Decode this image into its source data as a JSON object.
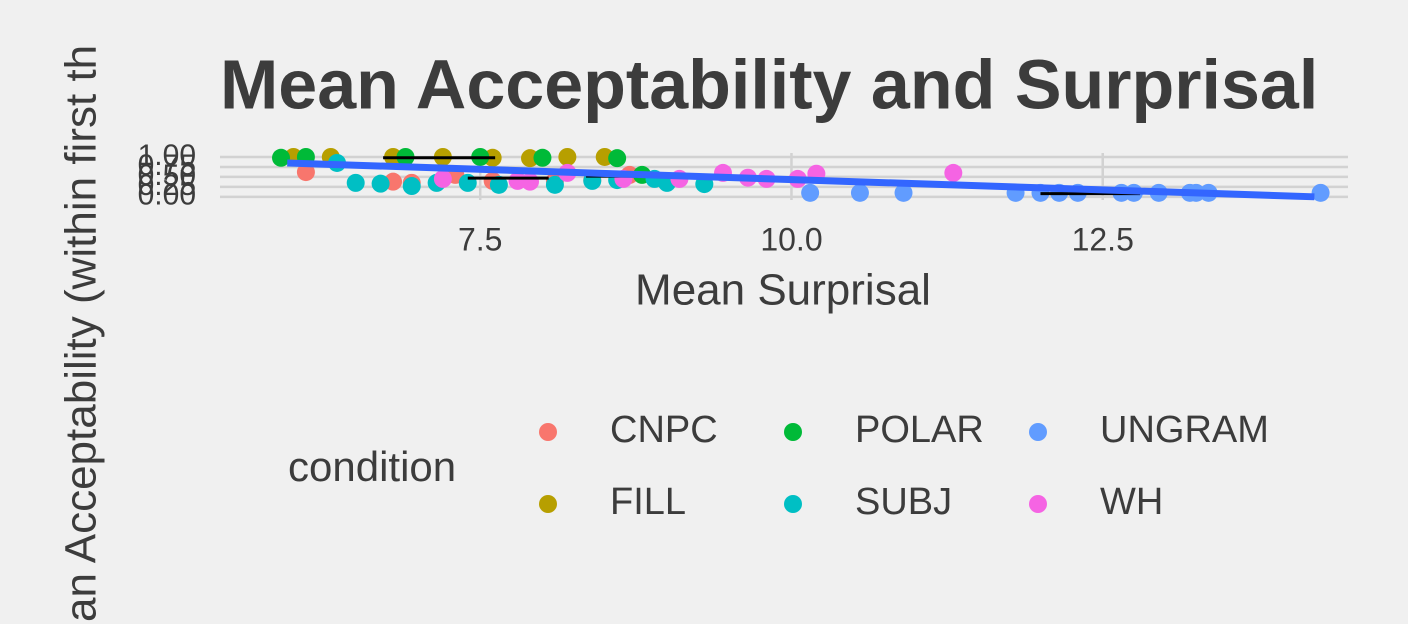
{
  "chart_data": {
    "type": "scatter",
    "title": "Mean Acceptability and Surprisal",
    "x_label": "Mean Surprisal",
    "y_label": "an Acceptability (within first th",
    "legend_title": "condition",
    "xlim": [
      5.41,
      14.47
    ],
    "ylim": [
      -0.08,
      1.1
    ],
    "xticks": [
      7.5,
      {
        "value": 10,
        "label": "10.0"
      },
      12.5
    ],
    "yticks": [
      {
        "value": 0,
        "label": "0.00"
      },
      0.25,
      {
        "value": 0.5,
        "label": "0.50"
      },
      0.75,
      {
        "value": 1,
        "label": "1.00"
      }
    ],
    "grid": true,
    "series": [
      {
        "name": "CNPC",
        "color": "#F8766D",
        "x": [
          6.1,
          6.8,
          6.95,
          7.3,
          7.6,
          8.1,
          8.4,
          8.7
        ],
        "values": [
          0.62,
          0.38,
          0.35,
          0.55,
          0.4,
          0.4,
          0.42,
          0.55
        ]
      },
      {
        "name": "FILL",
        "color": "#B79F00",
        "x": [
          6.0,
          6.3,
          6.8,
          7.2,
          7.6,
          7.9,
          8.2,
          8.5
        ],
        "values": [
          1.0,
          1.0,
          1.0,
          1.0,
          0.98,
          0.97,
          1.0,
          1.0
        ]
      },
      {
        "name": "POLAR",
        "color": "#00BA38",
        "x": [
          5.9,
          6.1,
          6.9,
          7.5,
          8.0,
          8.6,
          8.8
        ],
        "values": [
          0.98,
          1.0,
          1.0,
          1.0,
          0.98,
          0.97,
          0.55
        ]
      },
      {
        "name": "SUBJ",
        "color": "#00BFC4",
        "x": [
          6.35,
          6.5,
          6.7,
          6.95,
          7.15,
          7.4,
          7.65,
          8.1,
          8.4,
          8.6,
          8.9,
          9.0,
          9.3
        ],
        "values": [
          0.85,
          0.35,
          0.33,
          0.27,
          0.35,
          0.35,
          0.3,
          0.3,
          0.4,
          0.42,
          0.45,
          0.35,
          0.32
        ]
      },
      {
        "name": "UNGRAM",
        "color": "#619CFF",
        "x": [
          10.15,
          10.55,
          10.9,
          11.8,
          12.0,
          12.15,
          12.3,
          12.65,
          12.75,
          12.95,
          13.2,
          13.25,
          13.35,
          14.25
        ],
        "values": [
          0.1,
          0.1,
          0.1,
          0.1,
          0.1,
          0.1,
          0.1,
          0.1,
          0.1,
          0.1,
          0.1,
          0.1,
          0.1,
          0.1
        ]
      },
      {
        "name": "WH",
        "color": "#F564E3",
        "x": [
          7.2,
          7.8,
          7.9,
          8.2,
          8.65,
          9.1,
          9.45,
          9.65,
          9.8,
          10.05,
          10.2,
          11.3
        ],
        "values": [
          0.45,
          0.4,
          0.38,
          0.6,
          0.45,
          0.45,
          0.6,
          0.48,
          0.45,
          0.45,
          0.58,
          0.6
        ]
      }
    ],
    "error_bars": [
      {
        "x_min": 6.72,
        "x_max": 7.62,
        "y": 0.98
      },
      {
        "x_min": 7.4,
        "x_max": 8.05,
        "y": 0.47
      },
      {
        "x_min": 8.35,
        "x_max": 8.9,
        "y": 0.52
      },
      {
        "x_min": 12.0,
        "x_max": 12.8,
        "y": 0.08
      }
    ],
    "trend": {
      "color": "#3366FF",
      "x": [
        5.95,
        14.2
      ],
      "values": [
        0.85,
        0.0
      ]
    }
  }
}
